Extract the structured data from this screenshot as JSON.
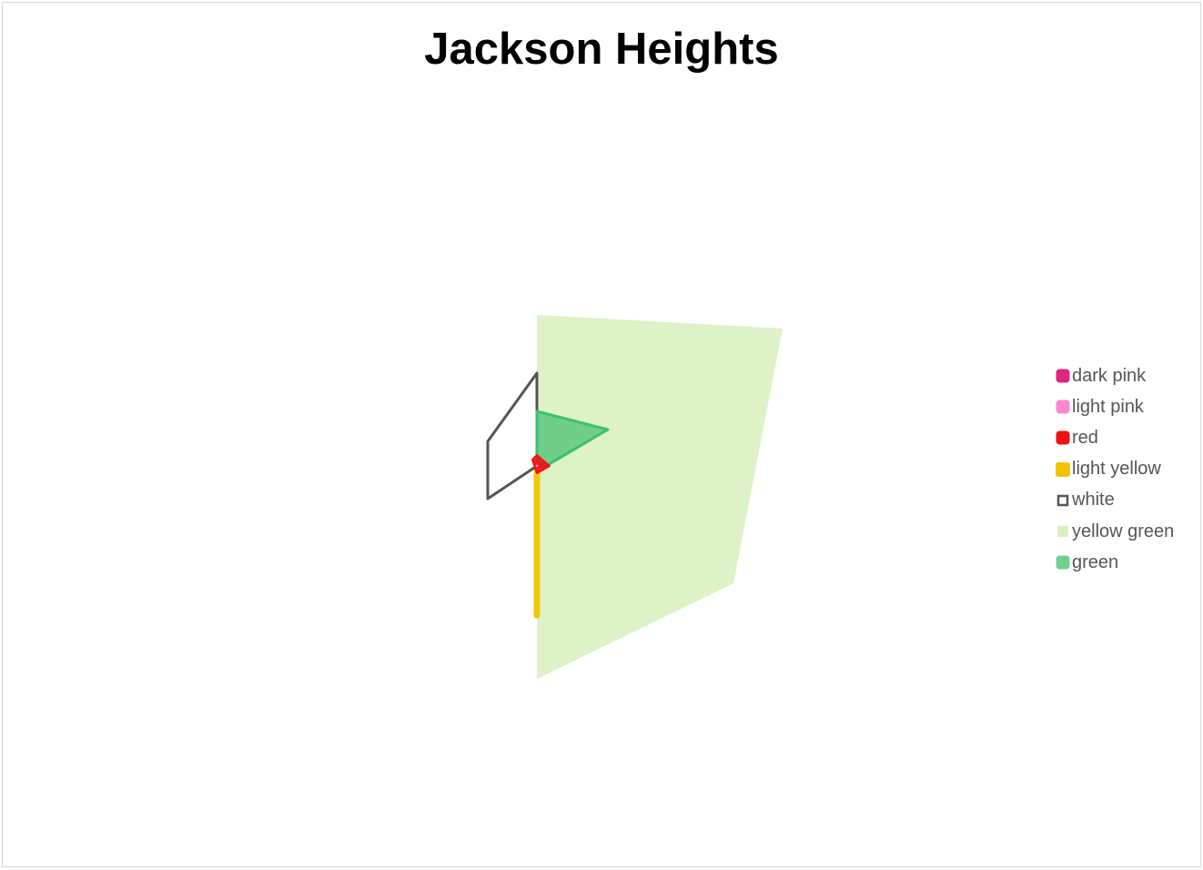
{
  "chart_data": {
    "type": "radar",
    "title": "Jackson Heights",
    "categories": [],
    "series": [
      {
        "name": "dark pink",
        "color": "#e0267a",
        "style": "filled",
        "opacity": 0.9
      },
      {
        "name": "light pink",
        "color": "#ff88cc",
        "style": "filled",
        "opacity": 0.9
      },
      {
        "name": "red",
        "color": "#ee1111",
        "style": "filled",
        "opacity": 0.9
      },
      {
        "name": "light yellow",
        "color": "#f2c200",
        "style": "line",
        "opacity": 0.95
      },
      {
        "name": "white",
        "color": "#555555",
        "style": "outline",
        "opacity": 1
      },
      {
        "name": "yellow green",
        "color": "#c8eaa2",
        "style": "filled",
        "opacity": 0.6
      },
      {
        "name": "green",
        "color": "#3fbf70",
        "style": "filled",
        "opacity": 0.7
      }
    ],
    "legend_position": "right",
    "grid": false
  }
}
